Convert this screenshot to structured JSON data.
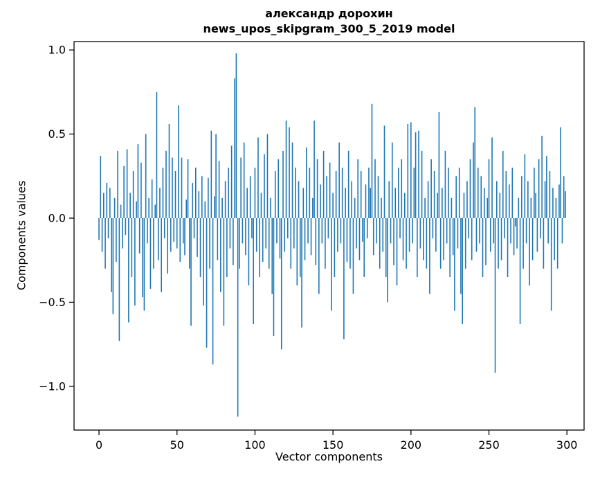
{
  "chart_data": {
    "type": "bar",
    "title": "александр дорохин",
    "subtitle": "news_upos_skipgram_300_5_2019 model",
    "xlabel": "Vector components",
    "ylabel": "Components values",
    "bar_color": "#1f77b4",
    "legend": "none",
    "grid": "off",
    "xlim": [
      -16,
      311
    ],
    "ylim": [
      -1.26,
      1.05
    ],
    "x_ticks": [
      0,
      50,
      100,
      150,
      200,
      250,
      300
    ],
    "x_tick_labels": [
      "0",
      "50",
      "100",
      "150",
      "200",
      "250",
      "300"
    ],
    "y_ticks": [
      1.0,
      0.5,
      0.0,
      -0.5,
      -1.0
    ],
    "y_tick_labels": [
      "1.0",
      "0.5",
      "0.0",
      "−0.5",
      "−1.0"
    ],
    "values": [
      -0.13,
      0.37,
      -0.2,
      0.15,
      -0.3,
      0.21,
      -0.12,
      0.18,
      -0.44,
      -0.57,
      0.12,
      -0.26,
      0.4,
      -0.73,
      0.08,
      -0.18,
      0.31,
      -0.1,
      0.41,
      -0.62,
      0.15,
      -0.35,
      0.28,
      -0.52,
      0.1,
      0.44,
      -0.21,
      0.33,
      -0.47,
      -0.55,
      0.5,
      -0.15,
      0.12,
      -0.42,
      0.23,
      -0.3,
      0.08,
      0.75,
      -0.25,
      0.18,
      -0.44,
      0.3,
      -0.12,
      0.4,
      -0.33,
      0.56,
      -0.2,
      0.36,
      -0.14,
      0.28,
      -0.18,
      0.67,
      -0.26,
      0.36,
      -0.15,
      -0.22,
      0.11,
      0.35,
      -0.3,
      -0.64,
      0.21,
      -0.12,
      0.3,
      -0.23,
      0.16,
      -0.35,
      0.25,
      -0.52,
      0.1,
      -0.77,
      0.24,
      -0.3,
      0.52,
      -0.87,
      0.13,
      0.5,
      -0.25,
      0.34,
      -0.44,
      0.12,
      -0.64,
      0.22,
      -0.35,
      0.3,
      -0.18,
      0.43,
      -0.28,
      0.83,
      0.98,
      -1.18,
      -0.3,
      0.36,
      -0.15,
      0.45,
      -0.22,
      0.18,
      -0.4,
      0.25,
      -0.12,
      -0.63,
      0.3,
      -0.2,
      0.48,
      -0.35,
      0.15,
      -0.26,
      0.38,
      -0.18,
      0.5,
      -0.3,
      0.12,
      -0.45,
      -0.7,
      0.28,
      -0.15,
      0.35,
      -0.24,
      -0.78,
      0.4,
      -0.2,
      0.58,
      -0.12,
      0.54,
      -0.3,
      0.45,
      -0.18,
      0.3,
      -0.4,
      0.22,
      -0.35,
      -0.65,
      0.18,
      -0.25,
      0.42,
      -0.15,
      0.3,
      -0.22,
      0.12,
      0.58,
      -0.28,
      0.35,
      -0.45,
      0.2,
      -0.15,
      0.4,
      -0.3,
      0.25,
      -0.12,
      0.33,
      -0.55,
      0.15,
      -0.35,
      0.28,
      -0.2,
      0.45,
      -0.15,
      0.3,
      -0.72,
      0.18,
      -0.26,
      0.4,
      -0.3,
      0.22,
      -0.45,
      0.12,
      -0.18,
      0.35,
      -0.25,
      0.28,
      -0.14,
      -0.35,
      0.2,
      -0.12,
      0.3,
      0.18,
      0.68,
      -0.22,
      0.35,
      -0.15,
      0.25,
      -0.3,
      0.12,
      -0.2,
      0.55,
      -0.35,
      -0.5,
      0.22,
      -0.15,
      0.45,
      -0.28,
      0.18,
      -0.4,
      0.3,
      -0.12,
      0.35,
      -0.25,
      0.15,
      -0.3,
      0.56,
      -0.2,
      0.57,
      -0.15,
      0.3,
      0.51,
      -0.35,
      0.52,
      -0.18,
      0.4,
      -0.25,
      0.12,
      -0.3,
      0.22,
      -0.45,
      0.35,
      -0.12,
      0.28,
      -0.2,
      0.15,
      0.63,
      -0.3,
      0.18,
      -0.25,
      0.4,
      -0.15,
      0.3,
      -0.35,
      0.12,
      -0.22,
      -0.55,
      0.25,
      -0.18,
      0.3,
      -0.45,
      -0.63,
      0.15,
      -0.3,
      0.22,
      -0.12,
      0.35,
      -0.25,
      0.45,
      0.66,
      -0.2,
      0.3,
      -0.15,
      0.25,
      -0.35,
      0.18,
      -0.28,
      0.12,
      0.35,
      -0.2,
      0.48,
      -0.15,
      -0.92,
      0.22,
      -0.3,
      0.15,
      -0.25,
      0.4,
      -0.12,
      0.28,
      -0.35,
      0.2,
      -0.15,
      0.3,
      -0.22,
      -0.05,
      -0.18,
      0.12,
      -0.63,
      0.25,
      -0.3,
      0.38,
      -0.15,
      0.22,
      -0.4,
      0.12,
      -0.25,
      0.3,
      0.15,
      -0.2,
      0.35,
      -0.12,
      0.49,
      -0.3,
      0.22,
      0.37,
      -0.15,
      0.28,
      -0.55,
      0.18,
      -0.25,
      0.12,
      -0.3,
      0.2,
      0.54,
      -0.15,
      0.25,
      0.16
    ]
  }
}
